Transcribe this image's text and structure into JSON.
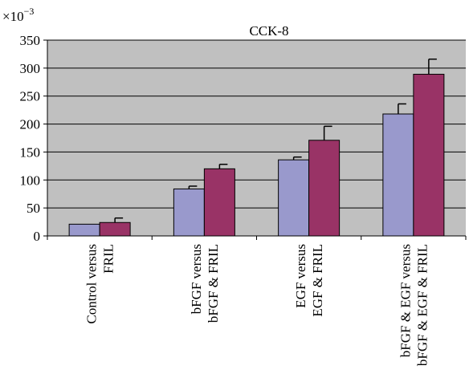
{
  "chart_data": {
    "type": "bar",
    "title": "CCK-8",
    "multiplier": "×10",
    "multiplier_exponent": "−3",
    "categories": [
      [
        "Control versus",
        "FRIL"
      ],
      [
        "bFGF versus",
        "bFGF & FRIL"
      ],
      [
        "EGF versus",
        "EGF & FRIL"
      ],
      [
        "bFGF & EGF versus",
        "bFGF & EGF & FRIL"
      ]
    ],
    "series": [
      {
        "values": [
          21,
          84,
          136,
          218
        ],
        "errors": [
          0,
          5,
          5,
          18
        ],
        "color": "#9999cc"
      },
      {
        "values": [
          24,
          120,
          171,
          289
        ],
        "errors": [
          8,
          8,
          25,
          27
        ],
        "color": "#993366"
      }
    ],
    "ylim": [
      0,
      350
    ],
    "yticks": [
      0,
      50,
      100,
      150,
      200,
      250,
      300,
      350
    ],
    "plot_background": "#c0c0c0",
    "grid": true,
    "legend": false
  }
}
